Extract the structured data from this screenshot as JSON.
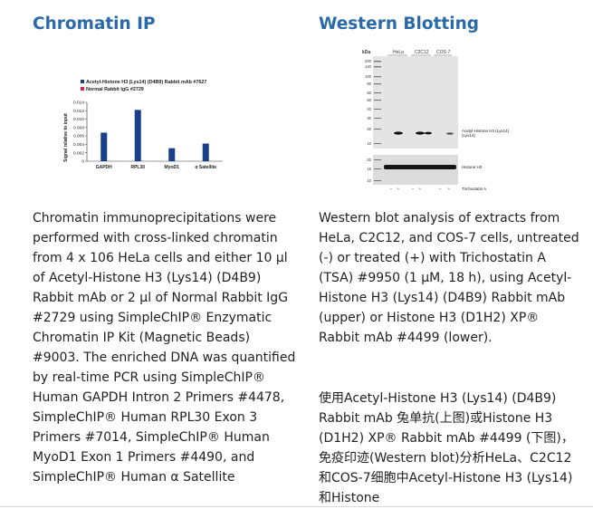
{
  "left": {
    "title": "Chromatin IP",
    "paragraph": "Chromatin immunoprecipitations were performed with cross-linked chromatin from 4 x 106 HeLa cells and either 10 µl of Acetyl-Histone H3 (Lys14) (D4B9) Rabbit mAb or 2 µl of Normal Rabbit IgG #2729 using SimpleChIP® Enzymatic Chromatin IP Kit (Magnetic Beads) #9003. The enriched DNA was quantified by real-time PCR using SimpleChIP® Human GAPDH Intron 2 Primers #4478, SimpleChIP® Human RPL30 Exon 3 Primers #7014, SimpleChIP® Human MyoD1 Exon 1 Primers #4490, and SimpleChIP® Human α Satellite"
  },
  "right": {
    "title": "Western Blotting",
    "paragraph1": "Western blot analysis of extracts from HeLa, C2C12, and COS-7 cells, untreated (-) or treated (+) with Trichostatin A (TSA) #9950 (1 µM, 18 h), using Acetyl-Histone H3 (Lys14) (D4B9) Rabbit mAb (upper) or Histone H3 (D1H2) XP® Rabbit mAb #4499 (lower).",
    "paragraph2": "使用Acetyl-Histone H3 (Lys14) (D4B9) Rabbit mAb 兔单抗(上图)或Histone H3 (D1H2) XP® Rabbit mAb #4499 (下图)，免疫印迹(Western blot)分析HeLa、C2C12和COS-7细胞中Acetyl-Histone H3 (Lys14)和Histone"
  },
  "chart_data": {
    "type": "bar",
    "categories": [
      "GAPDH",
      "RPL30",
      "MyoD1",
      "α Satellite"
    ],
    "series": [
      {
        "name": "Acetyl-Histone H3 (Lys14) (D4B9) Rabbit mAb #7627",
        "color": "#1a3f8a",
        "values": [
          0.0068,
          0.0122,
          0.0031,
          0.0042
        ]
      },
      {
        "name": "Normal Rabbit IgG #2729",
        "color": "#e0204a",
        "values": [
          0.0,
          0.0,
          0.0,
          0.0
        ]
      }
    ],
    "ylabel": "Signal relative to input",
    "yticks": [
      "0",
      "0.002",
      "0.004",
      "0.006",
      "0.008",
      "0.010",
      "0.012",
      "0.014"
    ],
    "ylim": [
      0,
      0.014
    ],
    "xlabel": "",
    "title": ""
  },
  "blot": {
    "kda_label": "kDa",
    "markers_top": [
      "200",
      "140",
      "100",
      "80",
      "60",
      "50",
      "40",
      "30",
      "20",
      "10"
    ],
    "markers_bottom": [
      "20",
      "15",
      "10"
    ],
    "cell_lines": [
      "HeLa",
      "C2C12",
      "COS-7"
    ],
    "upper_band_label": "Acetyl-Histone H3 (Lys14)",
    "lower_band_label": "Histone H3",
    "treatment_label": "Trichostatin A",
    "treatments": [
      "–",
      "+",
      "–",
      "+",
      "–",
      "+"
    ]
  }
}
